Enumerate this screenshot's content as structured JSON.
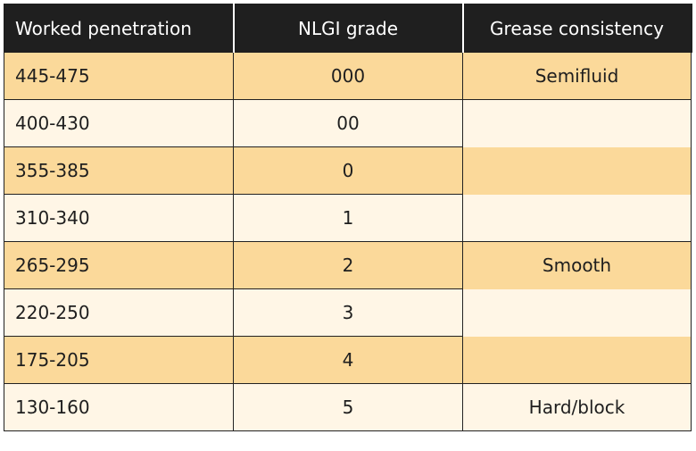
{
  "table": {
    "headers": [
      "Worked penetration",
      "NLGI grade",
      "Grease consistency"
    ],
    "rows": [
      {
        "penetration": "445-475",
        "grade": "000",
        "consistency": "Semifluid"
      },
      {
        "penetration": "400-430",
        "grade": "00",
        "consistency": ""
      },
      {
        "penetration": "355-385",
        "grade": "0",
        "consistency": ""
      },
      {
        "penetration": "310-340",
        "grade": "1",
        "consistency": ""
      },
      {
        "penetration": "265-295",
        "grade": "2",
        "consistency": "Smooth"
      },
      {
        "penetration": "220-250",
        "grade": "3",
        "consistency": ""
      },
      {
        "penetration": "175-205",
        "grade": "4",
        "consistency": ""
      },
      {
        "penetration": "130-160",
        "grade": "5",
        "consistency": "Hard/block"
      }
    ]
  },
  "colors": {
    "header_bg": "#1f1f1f",
    "header_text": "#ffffff",
    "row_odd": "#fbd99a",
    "row_even": "#fff6e6",
    "border": "#222222"
  }
}
